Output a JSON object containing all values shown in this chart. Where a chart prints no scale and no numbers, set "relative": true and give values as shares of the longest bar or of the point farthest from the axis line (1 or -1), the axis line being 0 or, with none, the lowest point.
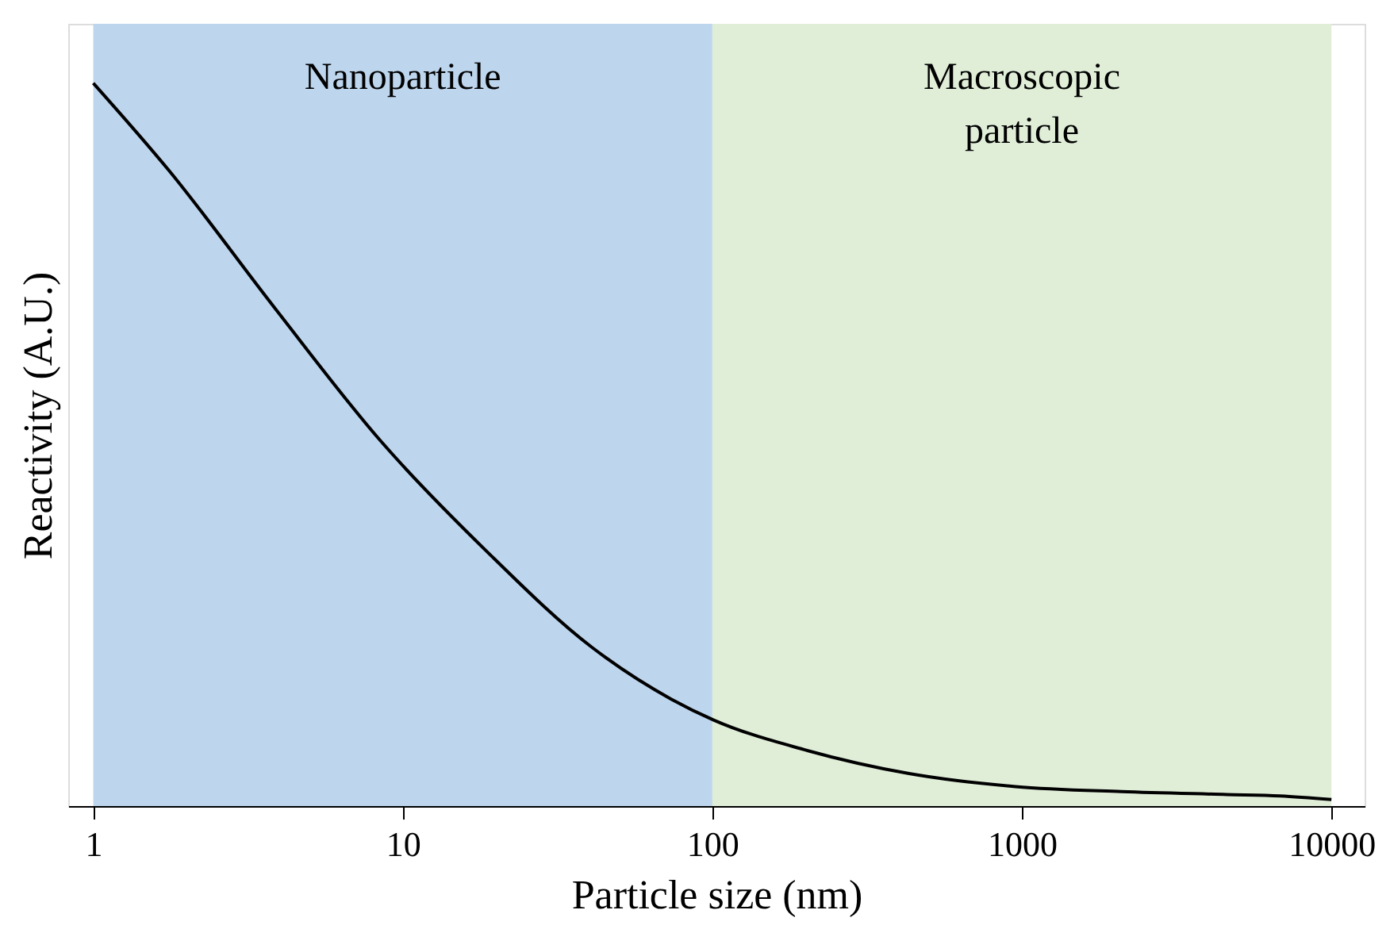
{
  "chart_data": {
    "type": "line",
    "xlabel": "Particle size (nm)",
    "ylabel": "Reactivity (A.U.)",
    "x": [
      1,
      1.757,
      3.84,
      8.48,
      18.6,
      40.7,
      73.6,
      101,
      198,
      432,
      953,
      2099,
      4590,
      6830,
      10000
    ],
    "series": [
      {
        "color": "#000000",
        "values": [
          1,
          0.879,
          0.69,
          0.505,
          0.353,
          0.22,
          0.148,
          0.119,
          0.078,
          0.045,
          0.027,
          0.02,
          0.016,
          0.014,
          0.009
        ]
      }
    ],
    "relative": true,
    "log": "x",
    "xlim": [
      0.83,
      12800
    ],
    "xticks": [
      1,
      10,
      100,
      1000,
      10000
    ],
    "grid": false,
    "bands": [
      {
        "axis": "x",
        "from": 1,
        "to": 100,
        "label": "Nanoparticle",
        "color": "#bdd5ed"
      },
      {
        "axis": "x",
        "from": 100,
        "to": 10000,
        "label": "Macroscopic particle",
        "color": "#e0eed8"
      }
    ]
  }
}
